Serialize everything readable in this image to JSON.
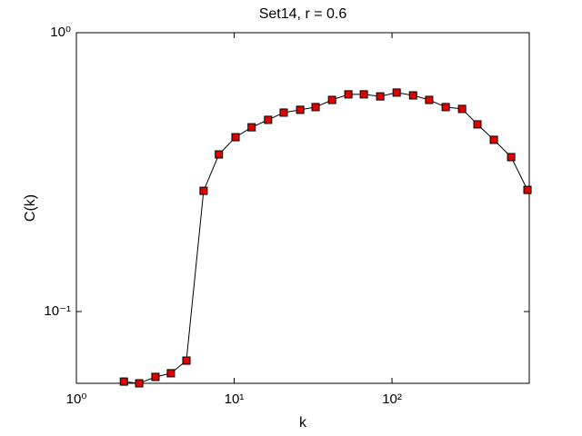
{
  "chart_data": {
    "type": "line",
    "title": "Set14, r = 0.6",
    "x_label": "k",
    "y_label": "C(k)",
    "xscale": "log",
    "yscale": "log",
    "xlim": [
      1,
      741
    ],
    "ylim": [
      0.0553,
      1
    ],
    "xticks": [
      {
        "value": 1,
        "label": "10⁰"
      },
      {
        "value": 10,
        "label": "10¹"
      },
      {
        "value": 100,
        "label": "10²"
      }
    ],
    "yticks": [
      {
        "value": 0.1,
        "label": "10⁻¹"
      },
      {
        "value": 1,
        "label": "10⁰"
      }
    ],
    "x": [
      2,
      2.5,
      3.17,
      3.97,
      4.98,
      6.4,
      8.0,
      10.2,
      12.9,
      16.4,
      20.6,
      26.2,
      32.8,
      41.7,
      52.9,
      66.3,
      84.2,
      107,
      136,
      172,
      219,
      278,
      348,
      442,
      569,
      722
    ],
    "series": [
      {
        "name": "C(k)",
        "color": "#e00000",
        "values": [
          0.0561,
          0.0553,
          0.0583,
          0.0601,
          0.0667,
          0.271,
          0.366,
          0.422,
          0.458,
          0.487,
          0.517,
          0.529,
          0.541,
          0.574,
          0.601,
          0.601,
          0.591,
          0.61,
          0.596,
          0.574,
          0.541,
          0.533,
          0.469,
          0.413,
          0.358,
          0.273
        ]
      }
    ]
  }
}
